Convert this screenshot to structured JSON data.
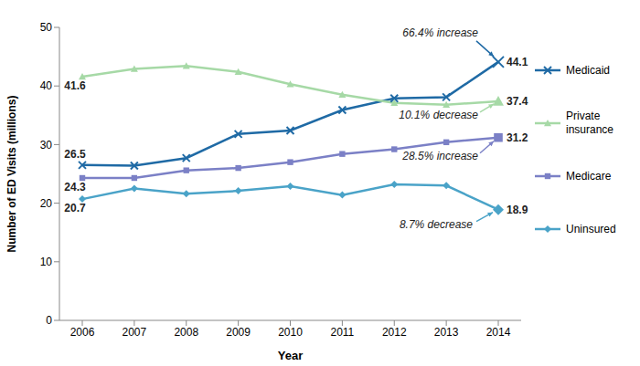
{
  "chart_data": {
    "type": "line",
    "x_label": "Year",
    "y_label": "Number of ED Visits (millions)",
    "categories": [
      "2006",
      "2007",
      "2008",
      "2009",
      "2010",
      "2011",
      "2012",
      "2013",
      "2014"
    ],
    "ylim": [
      0,
      50
    ],
    "yticks": [
      0,
      10,
      20,
      30,
      40,
      50
    ],
    "grid": false,
    "legend": "right",
    "data_labels": true,
    "series": [
      {
        "name": "Medicaid",
        "color": "#1f6aa5",
        "marker": "x",
        "line_style": "solid",
        "values": [
          26.5,
          26.4,
          27.7,
          31.8,
          32.4,
          35.9,
          37.9,
          38.1,
          44.1
        ],
        "value_labels": [
          "26.5",
          null,
          null,
          null,
          null,
          null,
          null,
          null,
          "44.1"
        ]
      },
      {
        "name": "Private insurance",
        "color": "#a6d9a6",
        "marker": "triangle",
        "line_style": "solid",
        "values": [
          41.6,
          42.9,
          43.4,
          42.4,
          40.3,
          38.5,
          37.1,
          36.8,
          37.4
        ],
        "value_labels": [
          "41.6",
          null,
          null,
          null,
          null,
          null,
          null,
          null,
          "37.4"
        ]
      },
      {
        "name": "Medicare",
        "color": "#7b80c6",
        "marker": "square",
        "line_style": "solid",
        "values": [
          24.3,
          24.3,
          25.6,
          26.0,
          27.0,
          28.4,
          29.2,
          30.4,
          31.2
        ],
        "value_labels": [
          "24.3",
          null,
          null,
          null,
          null,
          null,
          null,
          null,
          "31.2"
        ]
      },
      {
        "name": "Uninsured",
        "color": "#4aa3c8",
        "marker": "diamond",
        "line_style": "solid",
        "values": [
          20.7,
          22.5,
          21.6,
          22.1,
          22.9,
          21.4,
          23.2,
          23.0,
          18.9
        ],
        "value_labels": [
          "20.7",
          null,
          null,
          null,
          null,
          null,
          null,
          null,
          "18.9"
        ]
      }
    ],
    "annotations": [
      {
        "text": "66.4% increase",
        "series": "Medicaid"
      },
      {
        "text": "10.1% decrease",
        "series": "Private insurance"
      },
      {
        "text": "28.5% increase",
        "series": "Medicare"
      },
      {
        "text": "8.7% decrease",
        "series": "Uninsured"
      }
    ]
  }
}
